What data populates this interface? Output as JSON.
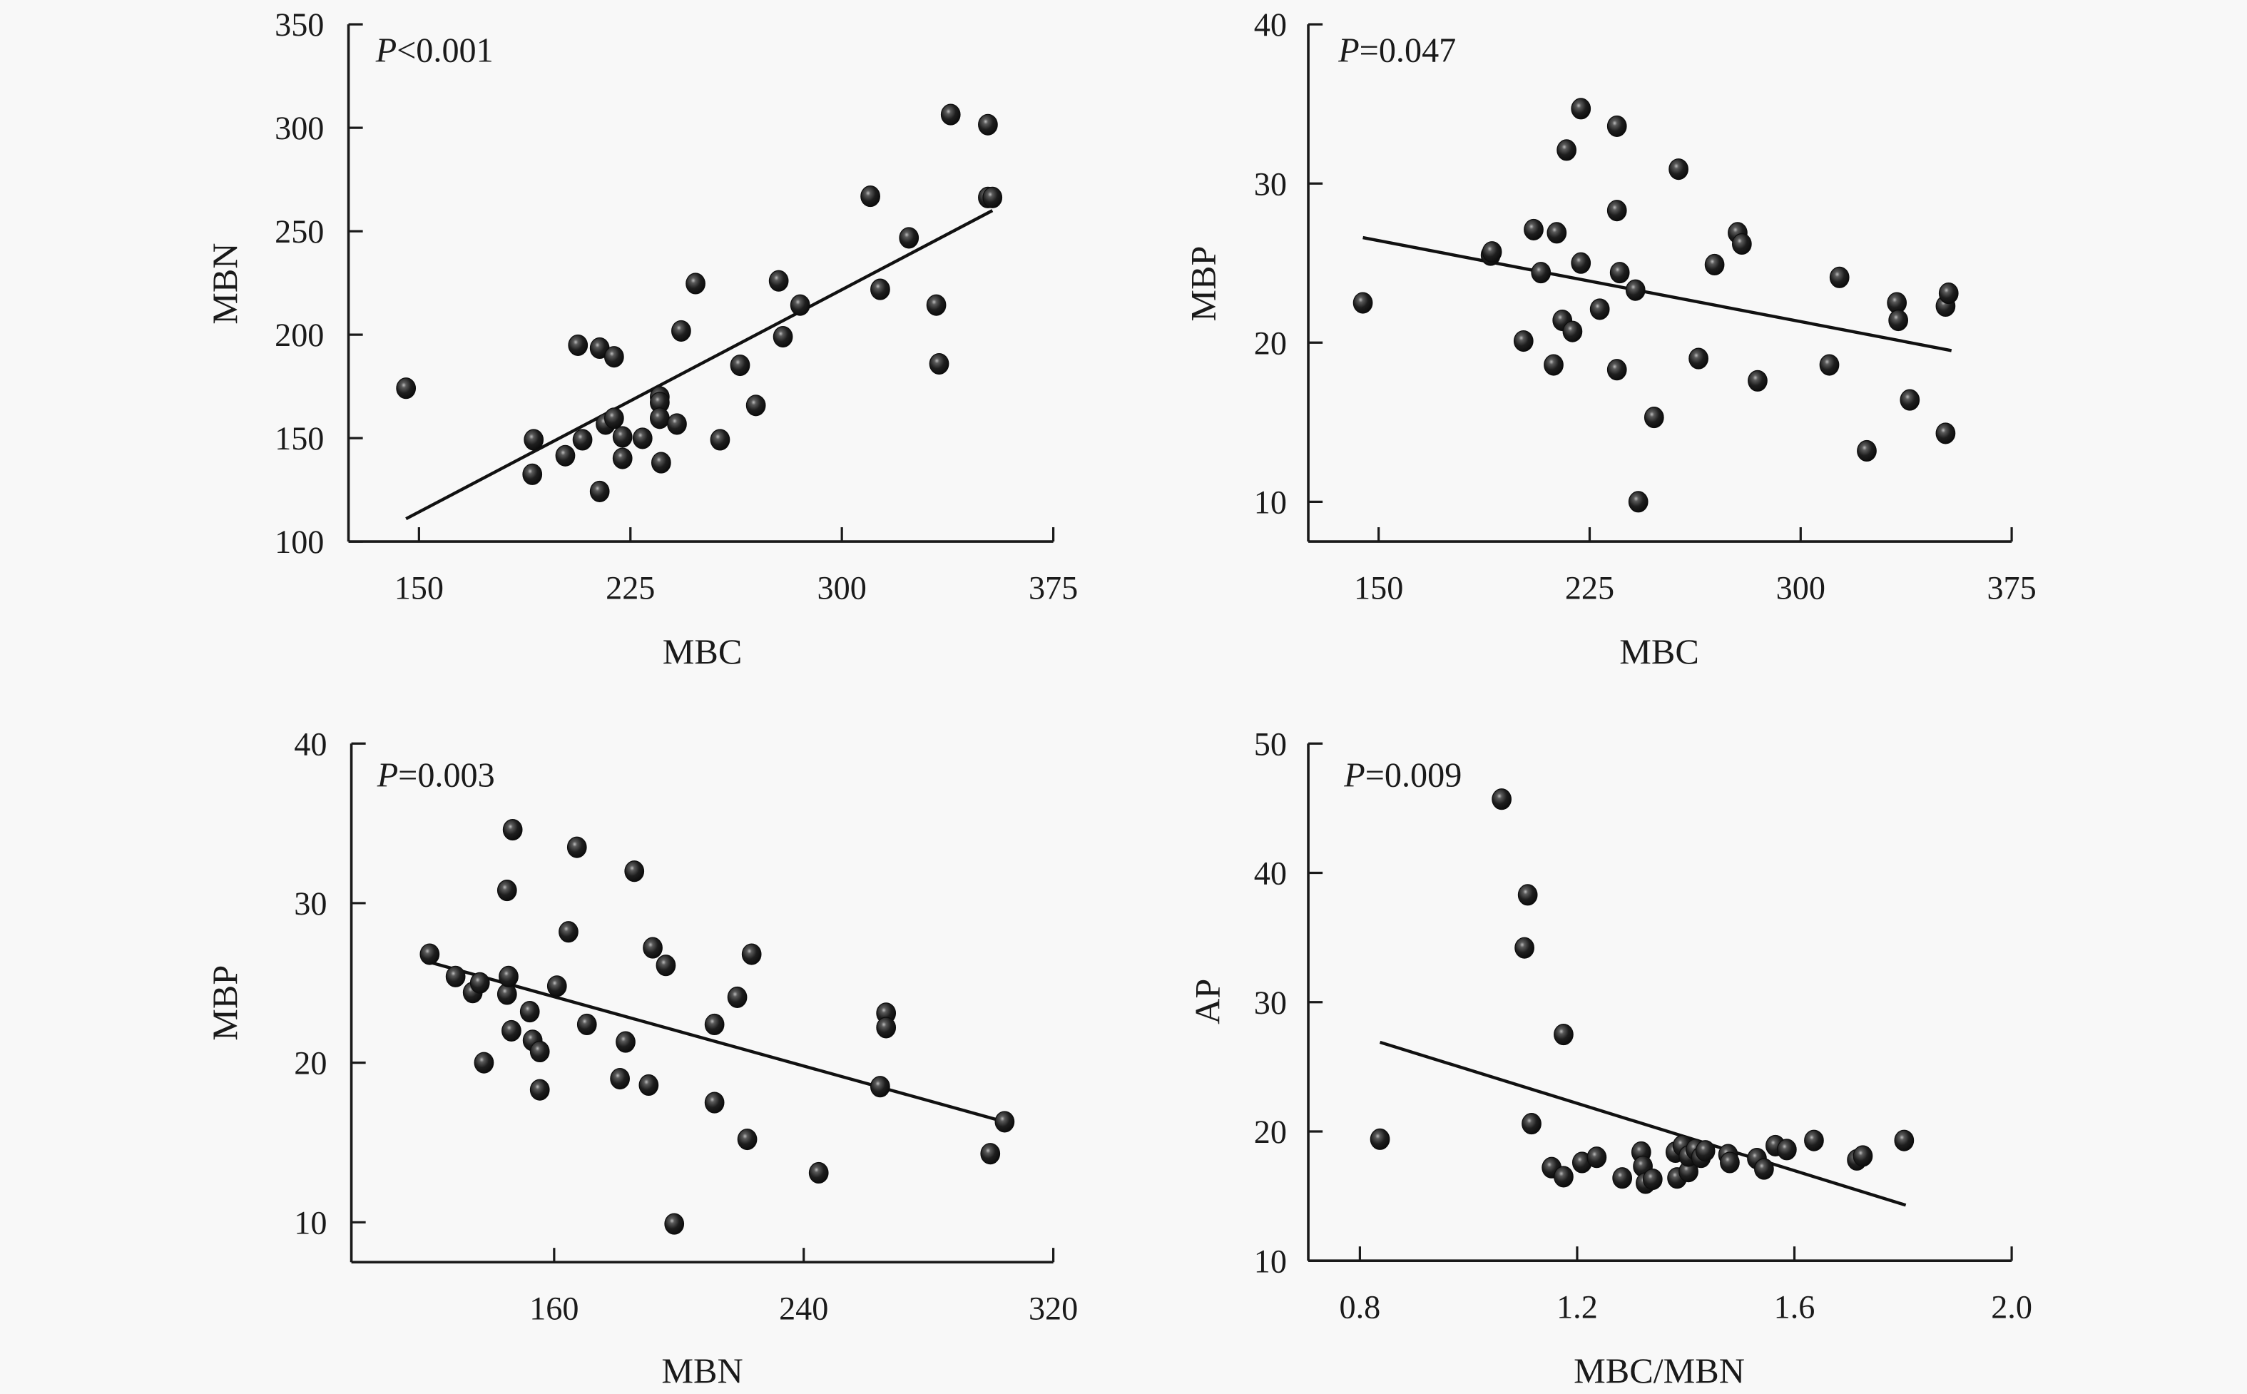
{
  "figure": {
    "background": "#f8f8f8",
    "point_color": "#1c1c1c",
    "line_color": "#111111"
  },
  "chart_data": [
    {
      "type": "scatter",
      "id": "mbc-vs-mbn",
      "title": "",
      "xlabel": "MBC",
      "ylabel": "MBN",
      "xlim": [
        125,
        375
      ],
      "ylim": [
        100,
        350
      ],
      "xticks": [
        150,
        225,
        300,
        375
      ],
      "yticks": [
        100,
        150,
        200,
        250,
        300,
        350
      ],
      "grid": false,
      "annotation": {
        "italic": "P",
        "text": "<0.001"
      },
      "trendline": {
        "x": [
          145.4,
          353.4
        ],
        "y": [
          111,
          260
        ]
      },
      "points": {
        "x": [
          145.4,
          190.7,
          190.2,
          201.9,
          206.4,
          214.1,
          219.2,
          208.0,
          214.1,
          216.2,
          219.2,
          222.2,
          222.2,
          229.3,
          235.4,
          235.4,
          235.4,
          235.9,
          241.5,
          243.0,
          248.1,
          256.8,
          263.9,
          269.5,
          277.6,
          279.1,
          285.2,
          310.1,
          313.6,
          323.8,
          333.5,
          334.5,
          338.6,
          351.8,
          351.8,
          353.4
        ],
        "y": [
          174.1,
          149.2,
          132.5,
          141.5,
          194.9,
          193.5,
          189.3,
          149.2,
          124.2,
          156.8,
          159.6,
          150.6,
          140.2,
          149.9,
          169.9,
          167.2,
          159.6,
          138.1,
          156.8,
          201.8,
          224.7,
          149.2,
          185.2,
          165.8,
          226.0,
          199.0,
          214.3,
          266.9,
          221.9,
          246.8,
          214.3,
          185.9,
          306.4,
          301.5,
          266.3,
          266.3
        ]
      }
    },
    {
      "type": "scatter",
      "id": "mbc-vs-mbp",
      "title": "",
      "xlabel": "MBC",
      "ylabel": "MBP",
      "xlim": [
        125,
        375
      ],
      "ylim": [
        7.5,
        40
      ],
      "xticks": [
        150,
        225,
        300,
        375
      ],
      "yticks": [
        10,
        20,
        30,
        40
      ],
      "grid": false,
      "annotation": {
        "italic": "P",
        "text": "=0.047"
      },
      "trendline": {
        "x": [
          144.4,
          353.6
        ],
        "y": [
          26.6,
          19.5
        ]
      },
      "points": {
        "x": [
          144.4,
          189.8,
          190.3,
          201.5,
          205.1,
          207.7,
          212.2,
          213.3,
          215.3,
          216.8,
          218.9,
          221.9,
          221.9,
          228.6,
          234.7,
          234.7,
          235.7,
          234.7,
          241.3,
          242.3,
          247.9,
          256.6,
          263.7,
          269.4,
          277.6,
          279.1,
          284.7,
          310.2,
          313.8,
          323.5,
          334.2,
          334.7,
          338.8,
          351.5,
          352.6,
          351.5
        ],
        "y": [
          22.5,
          25.5,
          25.7,
          20.1,
          27.1,
          24.4,
          18.6,
          26.9,
          21.4,
          32.1,
          20.7,
          34.7,
          25.0,
          22.1,
          33.6,
          28.3,
          24.4,
          18.3,
          23.3,
          10.0,
          15.3,
          30.9,
          19.0,
          24.9,
          26.9,
          26.2,
          17.6,
          18.6,
          24.1,
          13.2,
          22.5,
          21.4,
          16.4,
          22.3,
          23.1,
          14.3
        ]
      }
    },
    {
      "type": "scatter",
      "id": "mbn-vs-mbp",
      "title": "",
      "xlabel": "MBN",
      "ylabel": "MBP",
      "xlim": [
        95,
        320
      ],
      "ylim": [
        7.5,
        40
      ],
      "xticks": [
        160,
        240,
        320
      ],
      "yticks": [
        10,
        20,
        30,
        40
      ],
      "grid": false,
      "annotation": {
        "italic": "P",
        "text": "=0.003"
      },
      "trendline": {
        "x": [
          120.1,
          304.4
        ],
        "y": [
          26.3,
          16.3
        ]
      },
      "points": {
        "x": [
          120.1,
          128.4,
          133.9,
          136.2,
          137.5,
          144.9,
          144.9,
          145.4,
          146.3,
          146.7,
          152.2,
          153.1,
          155.4,
          155.4,
          160.9,
          164.6,
          167.3,
          170.5,
          181.1,
          182.9,
          185.7,
          190.3,
          191.6,
          195.8,
          198.5,
          211.4,
          211.4,
          218.7,
          221.9,
          223.3,
          244.8,
          264.5,
          266.4,
          266.4,
          299.8,
          304.4
        ],
        "y": [
          26.8,
          25.4,
          24.4,
          25.0,
          20.0,
          30.8,
          24.3,
          25.4,
          22.0,
          34.6,
          23.2,
          21.4,
          20.7,
          18.3,
          24.8,
          28.2,
          33.5,
          22.4,
          19.0,
          21.3,
          32.0,
          18.6,
          27.2,
          26.1,
          9.9,
          22.4,
          17.5,
          24.1,
          15.2,
          26.8,
          13.1,
          18.5,
          23.1,
          22.2,
          14.3,
          16.3
        ]
      }
    },
    {
      "type": "scatter",
      "id": "ratio-vs-ap",
      "title": "",
      "xlabel": "MBC/MBN",
      "ylabel": "AP",
      "xlim": [
        0.705,
        2.0
      ],
      "ylim": [
        10,
        50
      ],
      "xticks": [
        "0.8",
        "1.2",
        "1.6",
        "2.0"
      ],
      "yticks": [
        10,
        20,
        30,
        40,
        50
      ],
      "grid": false,
      "annotation": {
        "italic": "P",
        "text": "=0.009"
      },
      "trendline": {
        "x": [
          0.837,
          1.805
        ],
        "y": [
          26.9,
          14.3
        ]
      },
      "points": {
        "x": [
          0.837,
          1.061,
          1.109,
          1.103,
          1.175,
          1.116,
          1.153,
          1.175,
          1.209,
          1.236,
          1.283,
          1.318,
          1.321,
          1.326,
          1.339,
          1.381,
          1.384,
          1.394,
          1.405,
          1.405,
          1.418,
          1.428,
          1.436,
          1.478,
          1.481,
          1.531,
          1.544,
          1.565,
          1.586,
          1.636,
          1.715,
          1.726,
          1.802
        ],
        "y": [
          19.4,
          45.7,
          38.3,
          34.2,
          27.5,
          20.6,
          17.2,
          16.5,
          17.6,
          18.0,
          16.4,
          18.4,
          17.3,
          16.0,
          16.3,
          18.4,
          16.4,
          18.9,
          16.9,
          18.1,
          18.6,
          18.0,
          18.5,
          18.2,
          17.6,
          17.9,
          17.1,
          18.9,
          18.6,
          19.3,
          17.8,
          18.1,
          19.3
        ]
      }
    }
  ]
}
